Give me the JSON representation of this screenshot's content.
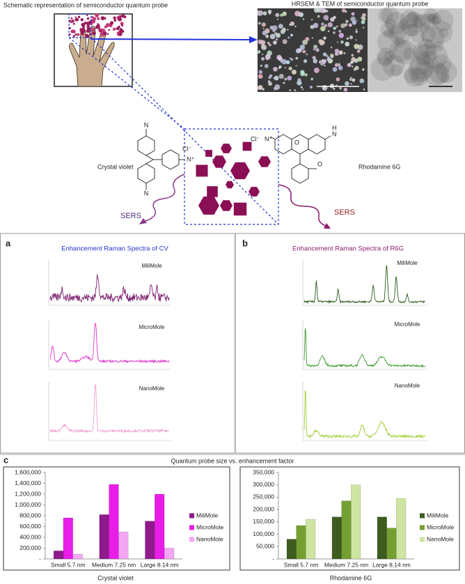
{
  "header": {
    "schematic_title": "Schematic representation of semiconductor quantum probe",
    "images_title": "HRSEM  & TEM of semiconductor quantum probe"
  },
  "molecules": {
    "cv": {
      "name": "Crystal violet",
      "atoms": [
        "Cl⁻",
        "N",
        "N",
        "N⁺"
      ]
    },
    "r6g": {
      "name": "Rhodamine 6G",
      "atoms": [
        "Cl⁻",
        "N⁺",
        "N",
        "H",
        "O",
        "O"
      ]
    },
    "sers_left": "SERS",
    "sers_right": "SERS"
  },
  "panel_a": {
    "label": "a",
    "title": "Enhancement Raman Spectra of CV",
    "spectra": [
      "MiliMole",
      "MicroMole",
      "NanoMole"
    ]
  },
  "panel_b": {
    "label": "b",
    "title": "Enhancement Raman Spectra of R6G",
    "spectra": [
      "MiliMole",
      "MicroMole",
      "NanoMole"
    ]
  },
  "panel_c": {
    "label": "c",
    "title": "Quantum probe size vs. enhancement factor"
  },
  "chart_data": [
    {
      "type": "bar",
      "title": "Crystal violet",
      "categories": [
        "Small 5.7 nm",
        "Medium 7.25 nm",
        "Large 8.14 nm"
      ],
      "series": [
        {
          "name": "MiliMole",
          "color": "#8e1a8e",
          "values": [
            150000,
            820000,
            700000
          ]
        },
        {
          "name": "MicroMole",
          "color": "#e81ee8",
          "values": [
            760000,
            1380000,
            1200000
          ]
        },
        {
          "name": "NanoMole",
          "color": "#f4a6f4",
          "values": [
            90000,
            500000,
            200000
          ]
        }
      ],
      "ylim": [
        0,
        1600000
      ],
      "yticks": [
        {
          "value": 0,
          "label": "-"
        },
        {
          "value": 200000,
          "label": "200,000"
        },
        {
          "value": 400000,
          "label": "400,000"
        },
        {
          "value": 600000,
          "label": "600,000"
        },
        {
          "value": 800000,
          "label": "800,000"
        },
        {
          "value": 1000000,
          "label": "1,000,000"
        },
        {
          "value": 1200000,
          "label": "1,200,000"
        },
        {
          "value": 1400000,
          "label": "1,400,000"
        },
        {
          "value": 1600000,
          "label": "1,600,000"
        }
      ],
      "legend": "right"
    },
    {
      "type": "bar",
      "title": "Rhodamine 6G",
      "categories": [
        "Small 5.7 nm",
        "Medium 7.25 nm",
        "Large 8,14 nm"
      ],
      "series": [
        {
          "name": "MiliMole",
          "color": "#3f5c1f",
          "values": [
            80000,
            170000,
            170000
          ]
        },
        {
          "name": "MicroMole",
          "color": "#74a032",
          "values": [
            135000,
            235000,
            125000
          ]
        },
        {
          "name": "NanoMole",
          "color": "#cde5a0",
          "values": [
            160000,
            300000,
            245000
          ]
        }
      ],
      "ylim": [
        0,
        350000
      ],
      "yticks": [
        {
          "value": 0,
          "label": "-"
        },
        {
          "value": 50000,
          "label": "50,000"
        },
        {
          "value": 100000,
          "label": "100,000"
        },
        {
          "value": 150000,
          "label": "150,000"
        },
        {
          "value": 200000,
          "label": "200,000"
        },
        {
          "value": 250000,
          "label": "250,000"
        },
        {
          "value": 300000,
          "label": "300,000"
        },
        {
          "value": 350000,
          "label": "350,000"
        }
      ],
      "legend": "right"
    }
  ]
}
